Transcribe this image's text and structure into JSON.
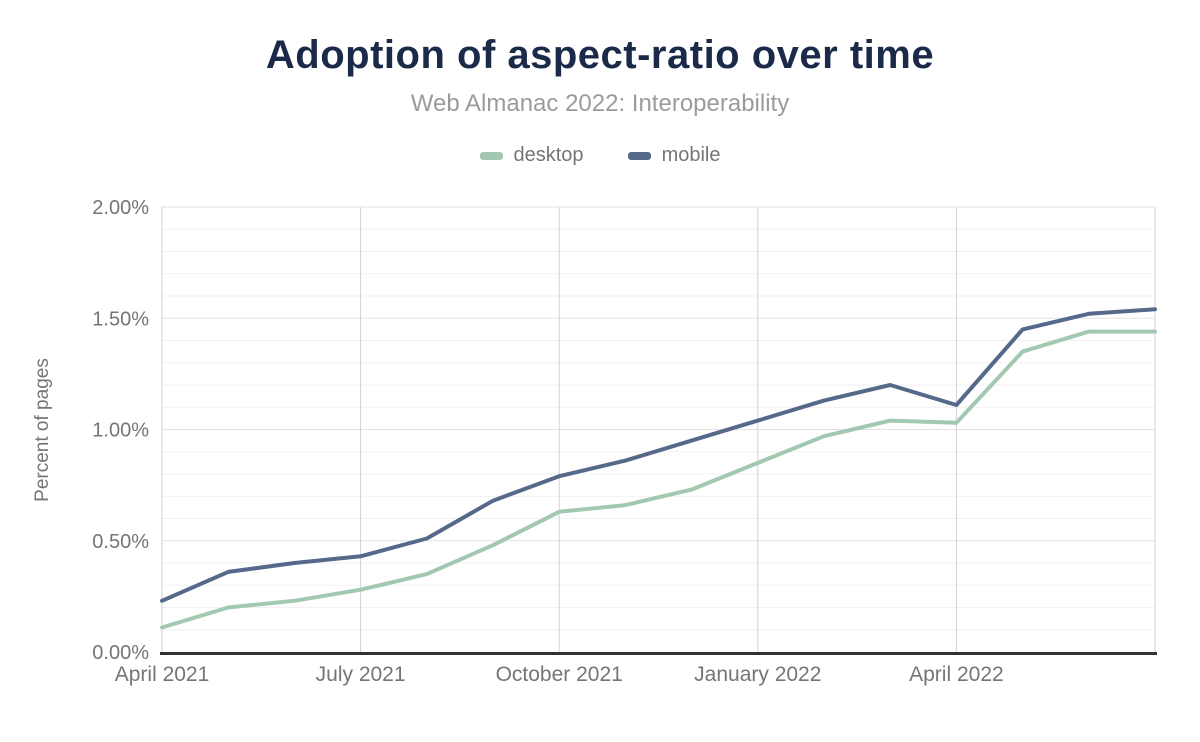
{
  "header": {
    "title": "Adoption of aspect-ratio over time",
    "subtitle": "Web Almanac 2022: Interoperability"
  },
  "legend": {
    "items": [
      {
        "label": "desktop",
        "color": "#a2c8b2"
      },
      {
        "label": "mobile",
        "color": "#56698a"
      }
    ]
  },
  "chart_data": {
    "type": "line",
    "title": "Adoption of aspect-ratio over time",
    "subtitle": "Web Almanac 2022: Interoperability",
    "xlabel": "",
    "ylabel": "Percent of pages",
    "ylim": [
      0,
      2.0
    ],
    "y_unit": "%",
    "y_major_step": 0.5,
    "y_minor_step": 0.1,
    "y_tick_labels": [
      "0.00%",
      "0.50%",
      "1.00%",
      "1.50%",
      "2.00%"
    ],
    "x": [
      "April 2021",
      "May 2021",
      "June 2021",
      "July 2021",
      "August 2021",
      "September 2021",
      "October 2021",
      "November 2021",
      "December 2021",
      "January 2022",
      "February 2022",
      "March 2022",
      "April 2022",
      "May 2022",
      "June 2022",
      "July 2022"
    ],
    "x_tick_positions": [
      0,
      3,
      6,
      9,
      12
    ],
    "x_tick_labels": [
      "April 2021",
      "July 2021",
      "October 2021",
      "January 2022",
      "April 2022"
    ],
    "x_gridline_positions": [
      0,
      3,
      6,
      9,
      12,
      15
    ],
    "series": [
      {
        "name": "desktop",
        "color": "#a2c8b2",
        "values": [
          0.11,
          0.2,
          0.23,
          0.28,
          0.35,
          0.48,
          0.63,
          0.66,
          0.73,
          0.85,
          0.97,
          1.04,
          1.03,
          1.35,
          1.44,
          1.44
        ]
      },
      {
        "name": "mobile",
        "color": "#56698a",
        "values": [
          0.23,
          0.36,
          0.4,
          0.43,
          0.51,
          0.68,
          0.79,
          0.86,
          0.95,
          1.04,
          1.13,
          1.2,
          1.11,
          1.45,
          1.52,
          1.54
        ]
      }
    ],
    "grid": true,
    "legend_position": "top",
    "colors": {
      "title_text": "#1b2a49",
      "subtitle_text": "#9b9b9b",
      "axis_text": "#757575",
      "axis_line": "#333333",
      "h_major_gridline": "#e2e2e2",
      "h_minor_gridline": "#f1f1f1",
      "v_gridline": "#d2d2d2"
    }
  }
}
